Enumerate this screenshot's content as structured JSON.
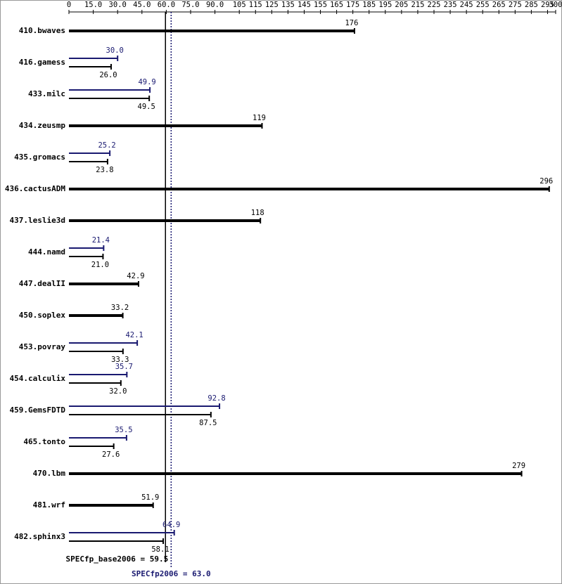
{
  "chart_data": {
    "type": "bar",
    "orientation": "horizontal",
    "categories": [
      "410.bwaves",
      "416.gamess",
      "433.milc",
      "434.zeusmp",
      "435.gromacs",
      "436.cactusADM",
      "437.leslie3d",
      "444.namd",
      "447.dealII",
      "450.soplex",
      "453.povray",
      "454.calculix",
      "459.GemsFDTD",
      "465.tonto",
      "470.lbm",
      "481.wrf",
      "482.sphinx3"
    ],
    "series": [
      {
        "color": "#191970",
        "values": [
          null,
          30.0,
          49.9,
          null,
          25.2,
          null,
          null,
          21.4,
          null,
          null,
          42.1,
          35.7,
          92.8,
          35.5,
          null,
          null,
          64.9
        ],
        "value_labels": [
          null,
          "30.0",
          "49.9",
          null,
          "25.2",
          null,
          null,
          "21.4",
          null,
          null,
          "42.1",
          "35.7",
          "92.8",
          "35.5",
          null,
          null,
          "64.9"
        ]
      },
      {
        "color": "#000000",
        "values": [
          176,
          26.0,
          49.5,
          119,
          23.8,
          296,
          118,
          21.0,
          42.9,
          33.2,
          33.3,
          32.0,
          87.5,
          27.6,
          279,
          51.9,
          58.1
        ],
        "value_labels": [
          "176",
          "26.0",
          "49.5",
          "119",
          "23.8",
          "296",
          "118",
          "21.0",
          "42.9",
          "33.2",
          "33.3",
          "32.0",
          "87.5",
          "27.6",
          "279",
          "51.9",
          "58.1"
        ]
      }
    ],
    "xlim": [
      0,
      300
    ],
    "xticks": [
      0,
      {
        "value": 15,
        "label": "15.0"
      },
      {
        "value": 30,
        "label": "30.0"
      },
      {
        "value": 45,
        "label": "45.0"
      },
      {
        "value": 60,
        "label": "60.0"
      },
      {
        "value": 75,
        "label": "75.0"
      },
      {
        "value": 90,
        "label": "90.0"
      },
      105,
      115,
      125,
      135,
      145,
      155,
      165,
      175,
      185,
      195,
      205,
      215,
      225,
      235,
      245,
      255,
      265,
      275,
      285,
      295,
      300
    ],
    "reference_lines": [
      {
        "label": "SPECfp_base2006 = 59.5",
        "value": 59.5,
        "color": "#000000",
        "style": "solid"
      },
      {
        "label": "SPECfp2006 = 63.0",
        "value": 63.0,
        "color": "#191970",
        "style": "dotted"
      }
    ]
  }
}
